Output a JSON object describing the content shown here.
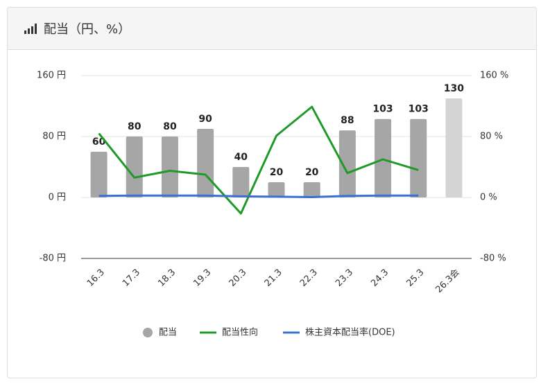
{
  "chart_data": {
    "type": "bar",
    "title": "配当（円、%）",
    "categories": [
      "16.3",
      "17.3",
      "18.3",
      "19.3",
      "20.3",
      "21.3",
      "22.3",
      "23.3",
      "24.3",
      "25.3",
      "26.3会"
    ],
    "series": [
      {
        "name": "配当",
        "type": "bar",
        "values": [
          60,
          80,
          80,
          90,
          40,
          20,
          20,
          88,
          103,
          103,
          130
        ],
        "colors": [
          "#a6a6a6",
          "#a6a6a6",
          "#a6a6a6",
          "#a6a6a6",
          "#a6a6a6",
          "#a6a6a6",
          "#a6a6a6",
          "#a6a6a6",
          "#a6a6a6",
          "#a6a6a6",
          "#d4d4d4"
        ]
      },
      {
        "name": "配当性向",
        "type": "line",
        "axis": "y2",
        "color": "#1e9a28",
        "values": [
          84,
          26,
          35,
          30,
          -21,
          81,
          119,
          32,
          50,
          36,
          null
        ]
      },
      {
        "name": "株主資本配当率(DOE)",
        "type": "line",
        "axis": "y2",
        "color": "#3b6fd4",
        "values": [
          2,
          2.5,
          2.5,
          2.5,
          1.5,
          1,
          0.5,
          2,
          2.5,
          2.5,
          null
        ]
      }
    ],
    "ylim": [
      -80,
      160
    ],
    "yticks": [
      {
        "value": -80,
        "label": "-80 円"
      },
      {
        "value": 0,
        "label": "0 円"
      },
      {
        "value": 80,
        "label": "80 円"
      },
      {
        "value": 160,
        "label": "160 円"
      }
    ],
    "y2lim": [
      -80,
      160
    ],
    "y2ticks": [
      {
        "value": -80,
        "label": "-80 %"
      },
      {
        "value": 0,
        "label": "0 %"
      },
      {
        "value": 80,
        "label": "80 %"
      },
      {
        "value": 160,
        "label": "160 %"
      }
    ],
    "grid": true,
    "legend": "bottom"
  }
}
